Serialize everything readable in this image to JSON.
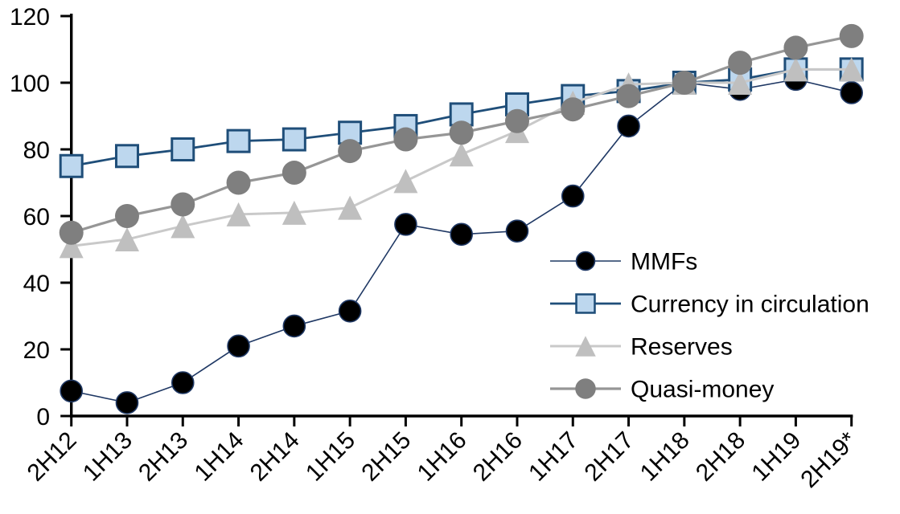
{
  "page": {
    "background": "#ffffff"
  },
  "chart_data": {
    "type": "line",
    "title": "",
    "xlabel": "",
    "ylabel": "",
    "ylim": [
      0,
      120
    ],
    "ytick_step": 20,
    "ytick_labels": [
      "0",
      "20",
      "40",
      "60",
      "80",
      "100",
      "120"
    ],
    "grid": false,
    "legend_position": "middle-right",
    "axis_color": "#000000",
    "categories": [
      "2H12",
      "1H13",
      "2H13",
      "1H14",
      "2H14",
      "1H15",
      "2H15",
      "1H16",
      "2H16",
      "1H17",
      "2H17",
      "1H18",
      "2H18",
      "1H19",
      "2H19*"
    ],
    "series": [
      {
        "name": "MMFs",
        "values": [
          7.5,
          4,
          10,
          21,
          27,
          31.5,
          57.5,
          54.5,
          55.5,
          66,
          87,
          100,
          98,
          101,
          97
        ],
        "marker": "circle",
        "marker_fill": "#000000",
        "marker_stroke": "#1F3864",
        "marker_size": 27,
        "line_color": "#1F3864",
        "line_width": 1.6
      },
      {
        "name": "Currency in circulation",
        "values": [
          75,
          78,
          80,
          82.5,
          83,
          85,
          87,
          90.5,
          93.5,
          96,
          97.5,
          100,
          101,
          104,
          104
        ],
        "marker": "square",
        "marker_fill": "#BDD7EE",
        "marker_stroke": "#1F4E79",
        "marker_size": 27,
        "line_color": "#1F4E79",
        "line_width": 2.8
      },
      {
        "name": "Reserves",
        "values": [
          51,
          53,
          57,
          60.5,
          61,
          62.5,
          70.5,
          78.5,
          85.5,
          94,
          99.5,
          100,
          100,
          104,
          104
        ],
        "marker": "triangle",
        "marker_fill": "#BFBFBF",
        "marker_stroke": "none",
        "marker_size": 30,
        "line_color": "#C9C9C9",
        "line_width": 3
      },
      {
        "name": "Quasi-money",
        "values": [
          55,
          60,
          63.5,
          70,
          73,
          79.5,
          83,
          85,
          88.5,
          92,
          96,
          100,
          106,
          110.5,
          114
        ],
        "marker": "circle",
        "marker_fill": "#7F7F7F",
        "marker_stroke": "none",
        "marker_size": 30,
        "line_color": "#969696",
        "line_width": 3.2
      }
    ]
  }
}
